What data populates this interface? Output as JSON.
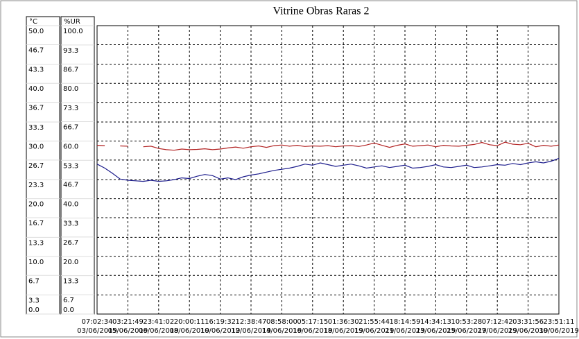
{
  "chart_data": {
    "type": "line",
    "title": "Vitrine Obras Raras 2",
    "ylabel": "°C",
    "y2label": "%UR",
    "ylim": [
      0,
      50
    ],
    "y2lim": [
      0,
      100
    ],
    "xlim": [
      0,
      15
    ],
    "yticks": [
      {
        "value": 0,
        "label": "0.0"
      },
      3.3,
      6.7,
      {
        "value": 10,
        "label": "10.0"
      },
      13.3,
      16.7,
      {
        "value": 20,
        "label": "20.0"
      },
      23.3,
      26.7,
      {
        "value": 30,
        "label": "30.0"
      },
      33.3,
      36.7,
      {
        "value": 40,
        "label": "40.0"
      },
      43.3,
      46.7,
      {
        "value": 50,
        "label": "50.0"
      }
    ],
    "y2ticks": [
      {
        "value": 0,
        "label": "0.0"
      },
      6.7,
      13.3,
      {
        "value": 20,
        "label": "20.0"
      },
      26.7,
      33.3,
      {
        "value": 40,
        "label": "40.0"
      },
      46.7,
      53.3,
      {
        "value": 60,
        "label": "60.0"
      },
      66.7,
      73.3,
      {
        "value": 80,
        "label": "80.0"
      },
      86.7,
      93.3,
      {
        "value": 100,
        "label": "100.0"
      }
    ],
    "xticks": [
      {
        "value": 0,
        "label": "07:02:34",
        "date": "03/06/2019"
      },
      {
        "value": 1,
        "label": "03:21:49",
        "date": "05/06/2019"
      },
      {
        "value": 2,
        "label": "23:41:02",
        "date": "06/06/2019"
      },
      {
        "value": 3,
        "label": "20:00:11",
        "date": "08/06/2019"
      },
      {
        "value": 4,
        "label": "16:19:32",
        "date": "10/06/2019"
      },
      {
        "value": 5,
        "label": "12:38:47",
        "date": "12/06/2019"
      },
      {
        "value": 6,
        "label": "08:58:00",
        "date": "14/06/2019"
      },
      {
        "value": 7,
        "label": "05:17:15",
        "date": "16/06/2019"
      },
      {
        "value": 8,
        "label": "01:36:30",
        "date": "18/06/2019"
      },
      {
        "value": 9,
        "label": "21:55:44",
        "date": "19/06/2019"
      },
      {
        "value": 10,
        "label": "18:14:59",
        "date": "21/06/2019"
      },
      {
        "value": 11,
        "label": "14:34:13",
        "date": "23/06/2019"
      },
      {
        "value": 12,
        "label": "10:53:28",
        "date": "25/06/2019"
      },
      {
        "value": 13,
        "label": "07:12:42",
        "date": "27/06/2019"
      },
      {
        "value": 14,
        "label": "03:31:56",
        "date": "29/06/2019"
      },
      {
        "value": 15,
        "label": "23:51:11",
        "date": "30/06/2019"
      }
    ],
    "grid": true,
    "x": [
      0,
      0.25,
      0.5,
      0.75,
      1,
      1.25,
      1.5,
      1.75,
      2,
      2.25,
      2.5,
      2.75,
      3,
      3.25,
      3.5,
      3.75,
      4,
      4.25,
      4.5,
      4.75,
      5,
      5.25,
      5.5,
      5.75,
      6,
      6.25,
      6.5,
      6.75,
      7,
      7.25,
      7.5,
      7.75,
      8,
      8.25,
      8.5,
      8.75,
      9,
      9.25,
      9.5,
      9.75,
      10,
      10.25,
      10.5,
      10.75,
      11,
      11.25,
      11.5,
      11.75,
      12,
      12.25,
      12.5,
      12.75,
      13,
      13.25,
      13.5,
      13.75,
      14,
      14.25,
      14.5,
      14.75,
      15
    ],
    "series": [
      {
        "color": "#1c1c8c",
        "values": [
          26.0,
          25.3,
          24.4,
          23.4,
          23.2,
          23.1,
          23.0,
          23.2,
          23.0,
          23.1,
          23.3,
          23.6,
          23.5,
          23.9,
          24.2,
          24.0,
          23.4,
          23.6,
          23.3,
          23.8,
          24.1,
          24.3,
          24.6,
          24.9,
          25.1,
          25.3,
          25.6,
          26.0,
          25.8,
          26.2,
          25.9,
          25.6,
          25.8,
          26.0,
          25.7,
          25.3,
          25.5,
          25.7,
          25.4,
          25.6,
          25.8,
          25.3,
          25.4,
          25.6,
          25.9,
          25.5,
          25.4,
          25.6,
          25.8,
          25.4,
          25.5,
          25.7,
          25.9,
          25.8,
          26.1,
          25.9,
          26.2,
          26.4,
          26.2,
          26.5,
          27.0
        ]
      },
      {
        "color": "#b22222",
        "axis": "y2",
        "values": [
          58.5,
          58.4,
          null,
          58.3,
          58.2,
          null,
          58.0,
          58.2,
          57.4,
          57.0,
          56.8,
          57.2,
          57.0,
          57.1,
          57.3,
          57.0,
          57.2,
          57.6,
          57.9,
          57.5,
          58.0,
          58.3,
          57.8,
          58.4,
          58.6,
          58.2,
          58.5,
          58.1,
          58.3,
          58.2,
          58.4,
          58.0,
          58.3,
          58.4,
          58.1,
          58.6,
          59.3,
          58.5,
          57.8,
          58.5,
          59.0,
          58.2,
          58.4,
          58.6,
          58.0,
          58.5,
          58.3,
          58.2,
          58.5,
          58.8,
          59.5,
          58.7,
          58.4,
          59.6,
          58.9,
          58.7,
          59.2,
          58.0,
          58.5,
          58.2,
          58.6
        ]
      }
    ]
  }
}
